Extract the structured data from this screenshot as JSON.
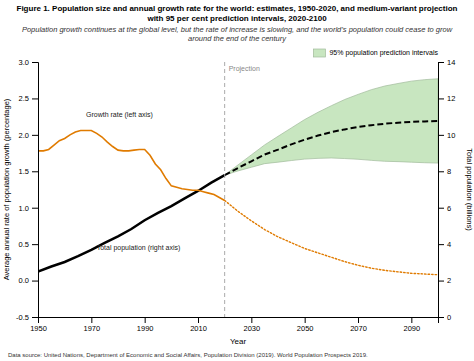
{
  "chart_data": {
    "type": "line",
    "title": "Figure 1. Population size and annual growth rate for the world: estimates, 1950-2020, and medium-variant projection with 95 per cent prediction intervals, 2020-2100",
    "subtitle": "Population growth continues at the global level, but the rate of increase is slowing, and the world’s population could cease to grow around the end of the century",
    "xlabel": "Year",
    "ylabel": "Average annual rate of population growth (percentage)",
    "y2label": "Total population (billions)",
    "footnote": "Data source: United Nations, Department of Economic and Social Affairs, Population Division (2019). World Population Prospects 2019.",
    "xlim": [
      1950,
      2100
    ],
    "xticks": [
      1950,
      1970,
      1990,
      2010,
      2030,
      2050,
      2070,
      2090
    ],
    "ylim": [
      -0.5,
      3.0
    ],
    "yticks": [
      -0.5,
      {
        "value": 0.0,
        "label": "0.0"
      },
      0.5,
      {
        "value": 1.0,
        "label": "1.0"
      },
      1.5,
      {
        "value": 2.0,
        "label": "2.0"
      },
      2.5,
      {
        "value": 3.0,
        "label": "3.0"
      }
    ],
    "y2lim": [
      0,
      14
    ],
    "y2ticks": [
      0,
      2,
      4,
      6,
      8,
      10,
      12,
      14
    ],
    "grid": false,
    "legend": "upper right",
    "series": [
      {
        "name": "95% population prediction intervals",
        "type": "area",
        "axis": "y2",
        "color": "#c8e6c0",
        "x": [
          2020,
          2025,
          2030,
          2035,
          2040,
          2045,
          2050,
          2055,
          2060,
          2065,
          2070,
          2075,
          2080,
          2085,
          2090,
          2095,
          2100
        ],
        "lower": [
          7.79,
          8.02,
          8.22,
          8.42,
          8.5,
          8.59,
          8.67,
          8.71,
          8.73,
          8.7,
          8.66,
          8.6,
          8.55,
          8.53,
          8.5,
          8.47,
          8.45
        ],
        "upper": [
          7.79,
          8.35,
          8.9,
          9.45,
          9.92,
          10.38,
          10.84,
          11.24,
          11.6,
          11.94,
          12.22,
          12.48,
          12.68,
          12.82,
          12.95,
          13.03,
          13.08
        ]
      },
      {
        "type": "line",
        "axis": "y2",
        "color": "#000000",
        "line_style": "solid",
        "x": [
          1950,
          1955,
          1960,
          1965,
          1970,
          1975,
          1980,
          1985,
          1990,
          1995,
          2000,
          2005,
          2010,
          2015,
          2020
        ],
        "values": [
          2.5,
          2.77,
          3.02,
          3.34,
          3.69,
          4.07,
          4.43,
          4.83,
          5.31,
          5.72,
          6.09,
          6.51,
          6.92,
          7.38,
          7.79
        ]
      },
      {
        "type": "line",
        "axis": "y2",
        "color": "#000000",
        "line_style": "dashed",
        "x": [
          2020,
          2025,
          2030,
          2035,
          2040,
          2045,
          2050,
          2055,
          2060,
          2065,
          2070,
          2075,
          2080,
          2085,
          2090,
          2095,
          2100
        ],
        "values": [
          7.79,
          8.18,
          8.55,
          8.92,
          9.19,
          9.48,
          9.74,
          9.96,
          10.15,
          10.3,
          10.43,
          10.53,
          10.61,
          10.67,
          10.71,
          10.74,
          10.76
        ]
      },
      {
        "type": "line",
        "axis": "y",
        "color": "#E07B00",
        "line_style": "solid",
        "x": [
          1950,
          1952,
          1954,
          1956,
          1958,
          1960,
          1962,
          1964,
          1966,
          1968,
          1970,
          1972,
          1974,
          1976,
          1978,
          1980,
          1982,
          1984,
          1986,
          1988,
          1990,
          1992,
          1994,
          1996,
          1998,
          2000,
          2002,
          2004,
          2006,
          2008,
          2010,
          2012,
          2014,
          2016,
          2018,
          2020
        ],
        "values": [
          1.78,
          1.78,
          1.8,
          1.86,
          1.92,
          1.95,
          2.0,
          2.04,
          2.06,
          2.06,
          2.06,
          2.02,
          1.97,
          1.9,
          1.84,
          1.79,
          1.78,
          1.78,
          1.79,
          1.8,
          1.8,
          1.72,
          1.6,
          1.52,
          1.4,
          1.3,
          1.28,
          1.26,
          1.25,
          1.24,
          1.24,
          1.22,
          1.2,
          1.18,
          1.14,
          1.1
        ]
      },
      {
        "type": "line",
        "axis": "y",
        "color": "#E07B00",
        "line_style": "dotted",
        "x": [
          2020,
          2025,
          2030,
          2035,
          2040,
          2045,
          2050,
          2055,
          2060,
          2065,
          2070,
          2075,
          2080,
          2085,
          2090,
          2095,
          2100
        ],
        "values": [
          1.1,
          0.95,
          0.82,
          0.7,
          0.6,
          0.52,
          0.44,
          0.38,
          0.32,
          0.26,
          0.21,
          0.17,
          0.14,
          0.12,
          0.1,
          0.09,
          0.08
        ]
      }
    ],
    "vline": {
      "x": 2020,
      "label": "Projection",
      "color": "#a0a0a0"
    },
    "annotations": [
      {
        "text": "Growth rate (left axis)",
        "x": 1968,
        "y": 2.24
      },
      {
        "text": "Total population (right axis)",
        "x": 1972,
        "y": 0.42
      }
    ]
  }
}
